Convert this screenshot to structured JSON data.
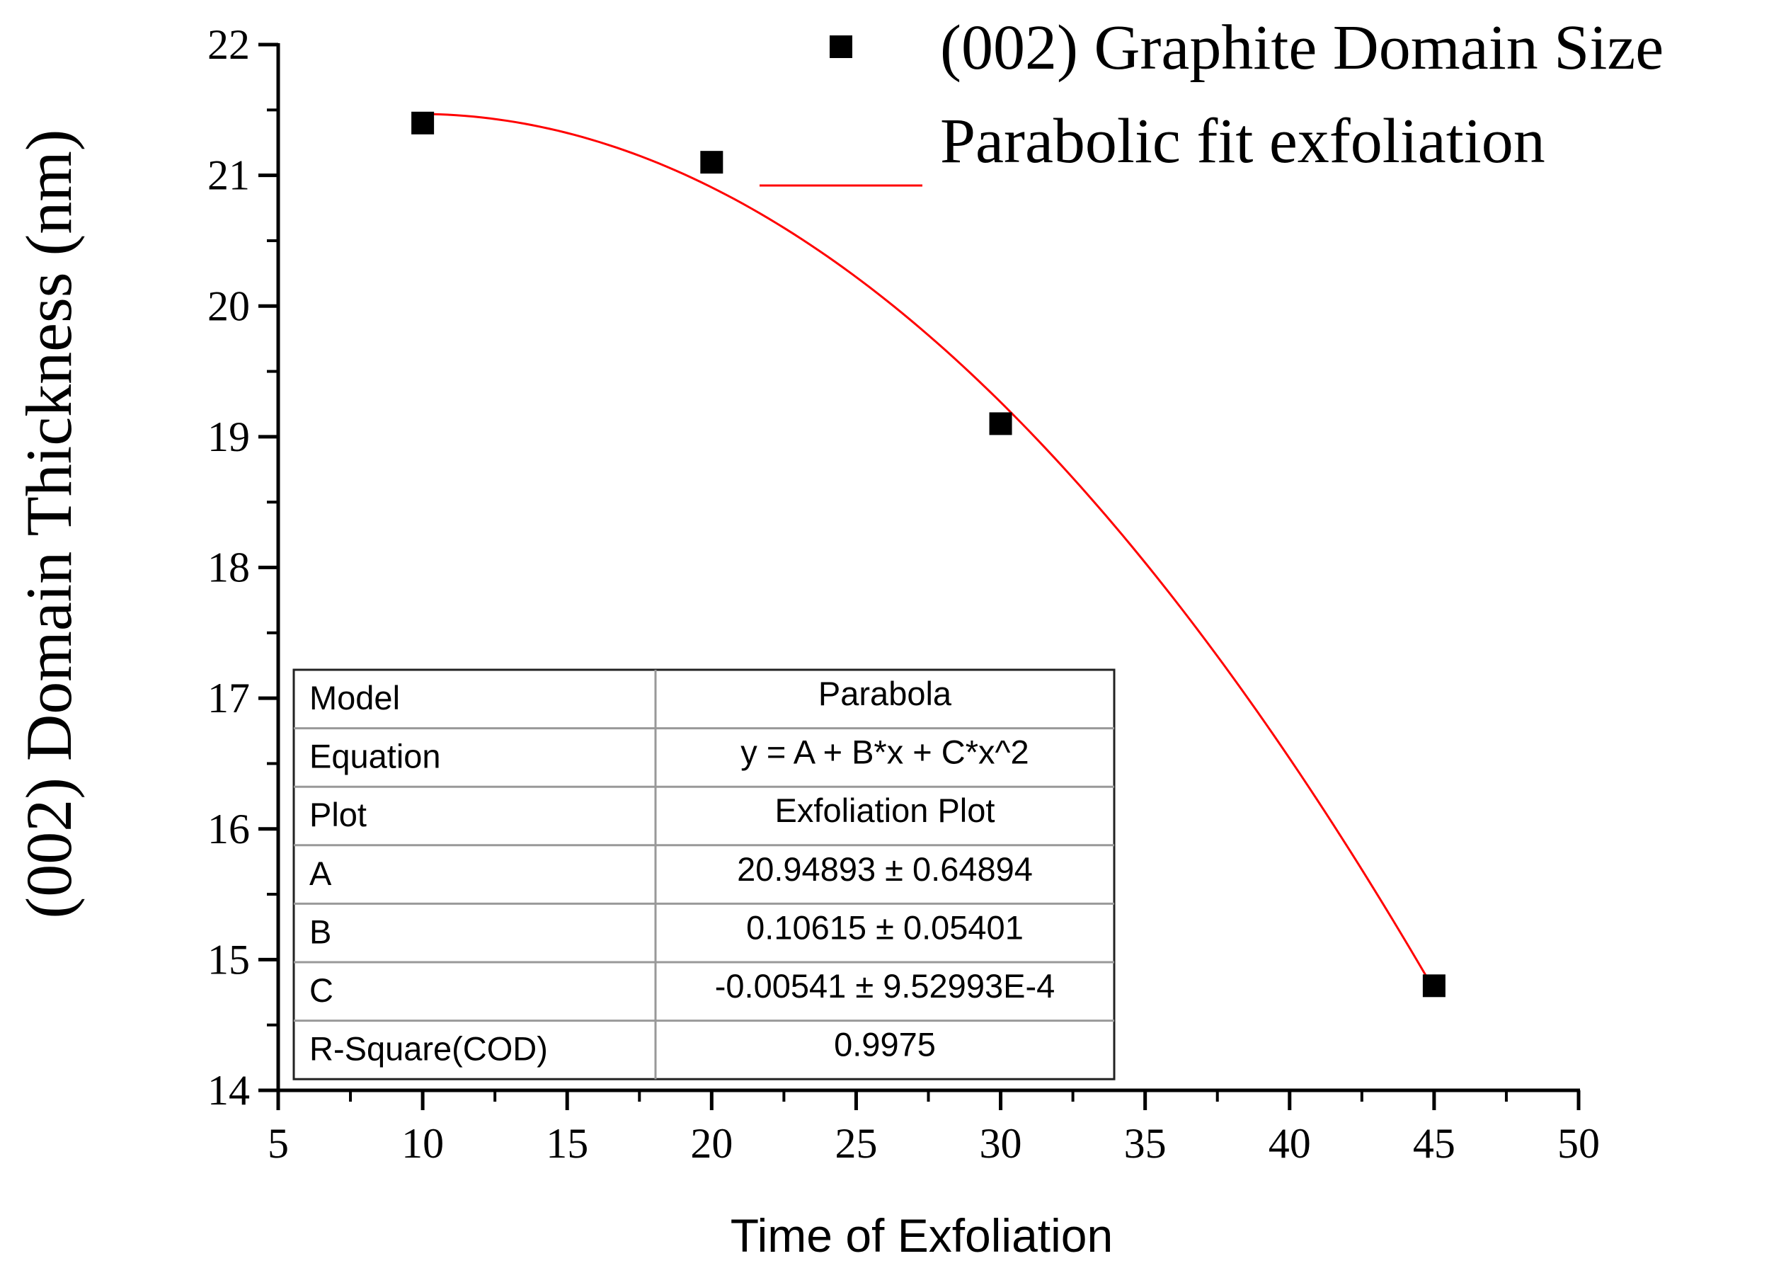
{
  "chart_data": {
    "type": "scatter",
    "title": "",
    "xlabel": "Time of Exfoliation",
    "ylabel": "(002) Domain Thickness (nm)",
    "xlim": [
      5,
      50
    ],
    "ylim": [
      14,
      22
    ],
    "xticks": [
      "5",
      "10",
      "15",
      "20",
      "25",
      "30",
      "35",
      "40",
      "45",
      "50"
    ],
    "yticks": [
      "14",
      "15",
      "16",
      "17",
      "18",
      "19",
      "20",
      "21",
      "22"
    ],
    "grid": false,
    "legend_position": "top-right",
    "series": [
      {
        "name": "(002) Graphite Domain Size",
        "kind": "scatter",
        "marker": "square",
        "color": "#000000",
        "x": [
          10,
          20,
          30,
          45
        ],
        "y": [
          21.4,
          21.1,
          19.1,
          14.8
        ]
      },
      {
        "name": "Parabolic fit exfoliation",
        "kind": "line",
        "color": "#ff0000",
        "fit": {
          "A": 20.94893,
          "B": 0.10615,
          "C": -0.00541,
          "x_range": [
            10,
            45
          ]
        }
      }
    ],
    "fit_table": {
      "rows": [
        {
          "label": "Model",
          "value": "Parabola"
        },
        {
          "label": "Equation",
          "value": "y = A + B*x + C*x^2"
        },
        {
          "label": "Plot",
          "value": "Exfoliation Plot"
        },
        {
          "label": "A",
          "value": "20.94893 ± 0.64894"
        },
        {
          "label": "B",
          "value": "0.10615 ± 0.05401"
        },
        {
          "label": "C",
          "value": "-0.00541 ± 9.52993E-4"
        },
        {
          "label": "R-Square(COD)",
          "value": "0.9975"
        }
      ]
    }
  }
}
